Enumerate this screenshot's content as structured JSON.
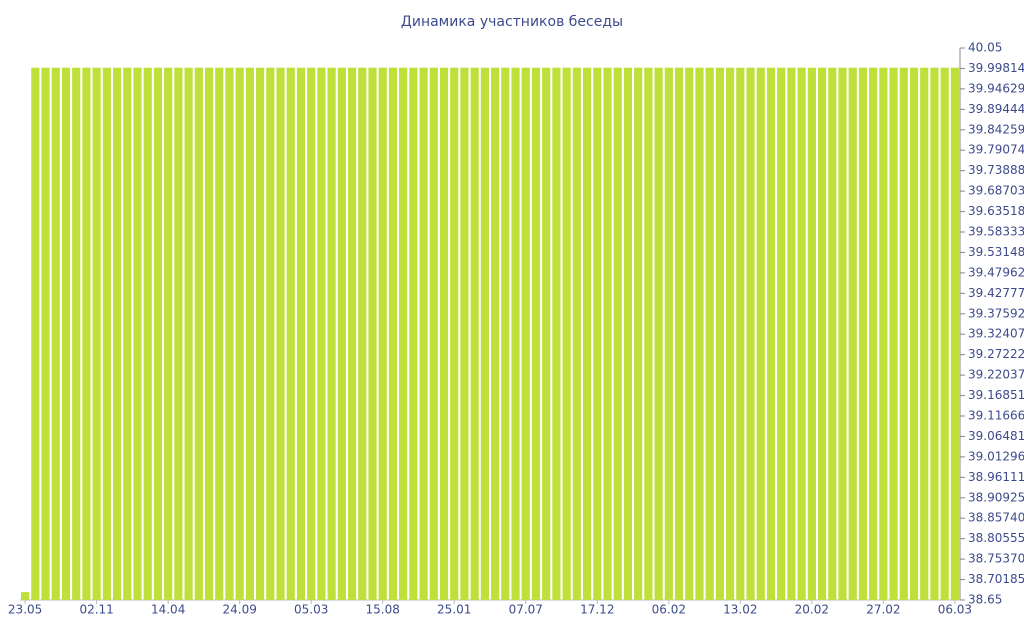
{
  "chart_data": {
    "type": "bar",
    "title": "Динамика участников беседы",
    "categories": [
      "23.05",
      null,
      null,
      null,
      null,
      null,
      null,
      "02.11",
      null,
      null,
      null,
      null,
      null,
      null,
      "14.04",
      null,
      null,
      null,
      null,
      null,
      null,
      "24.09",
      null,
      null,
      null,
      null,
      null,
      null,
      "05.03",
      null,
      null,
      null,
      null,
      null,
      null,
      "15.08",
      null,
      null,
      null,
      null,
      null,
      null,
      "25.01",
      null,
      null,
      null,
      null,
      null,
      null,
      "07.07",
      null,
      null,
      null,
      null,
      null,
      null,
      "17.12",
      null,
      null,
      null,
      null,
      null,
      null,
      "06.02",
      null,
      null,
      null,
      null,
      null,
      null,
      "13.02",
      null,
      null,
      null,
      null,
      null,
      null,
      "20.02",
      null,
      null,
      null,
      null,
      null,
      null,
      "27.02",
      null,
      null,
      null,
      null,
      null,
      null,
      "06.03"
    ],
    "values": [
      38.67,
      40,
      40,
      40,
      40,
      40,
      40,
      40,
      40,
      40,
      40,
      40,
      40,
      40,
      40,
      40,
      40,
      40,
      40,
      40,
      40,
      40,
      40,
      40,
      40,
      40,
      40,
      40,
      40,
      40,
      40,
      40,
      40,
      40,
      40,
      40,
      40,
      40,
      40,
      40,
      40,
      40,
      40,
      40,
      40,
      40,
      40,
      40,
      40,
      40,
      40,
      40,
      40,
      40,
      40,
      40,
      40,
      40,
      40,
      40,
      40,
      40,
      40,
      40,
      40,
      40,
      40,
      40,
      40,
      40,
      40,
      40,
      40,
      40,
      40,
      40,
      40,
      40,
      40,
      40,
      40,
      40,
      40,
      40,
      40,
      40,
      40,
      40,
      40,
      40,
      40,
      40
    ],
    "color": "#bfdf3a",
    "ylim": [
      38.65,
      40.05
    ],
    "yticks": [
      38.65,
      38.70185,
      {
        "value": 38.7537,
        "label": "38.75370"
      },
      38.80555,
      {
        "value": 38.8574,
        "label": "38.85740"
      },
      38.90925,
      38.96111,
      39.01296,
      39.06481,
      39.11666,
      39.16851,
      39.22037,
      39.27222,
      39.32407,
      39.37592,
      39.42777,
      39.47962,
      39.53148,
      39.58333,
      39.63518,
      39.68703,
      39.73888,
      39.79074,
      39.84259,
      39.89444,
      39.94629,
      39.99814,
      40.05
    ],
    "y_axis_side": "right"
  }
}
